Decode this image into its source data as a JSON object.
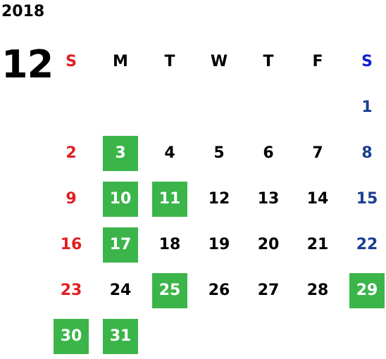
{
  "calendar": {
    "year": "2018",
    "month": "12",
    "weekdays": [
      "S",
      "M",
      "T",
      "W",
      "T",
      "F",
      "S"
    ],
    "highlight_color": "#3bb54a",
    "sunday_color": "#e02020",
    "saturday_color": "#1a3f8f",
    "weeks": [
      [
        {
          "day": ""
        },
        {
          "day": ""
        },
        {
          "day": ""
        },
        {
          "day": ""
        },
        {
          "day": ""
        },
        {
          "day": ""
        },
        {
          "day": "1"
        }
      ],
      [
        {
          "day": "2"
        },
        {
          "day": "3",
          "highlighted": true
        },
        {
          "day": "4"
        },
        {
          "day": "5"
        },
        {
          "day": "6"
        },
        {
          "day": "7"
        },
        {
          "day": "8"
        }
      ],
      [
        {
          "day": "9"
        },
        {
          "day": "10",
          "highlighted": true
        },
        {
          "day": "11",
          "highlighted": true
        },
        {
          "day": "12"
        },
        {
          "day": "13"
        },
        {
          "day": "14"
        },
        {
          "day": "15"
        }
      ],
      [
        {
          "day": "16"
        },
        {
          "day": "17",
          "highlighted": true
        },
        {
          "day": "18"
        },
        {
          "day": "19"
        },
        {
          "day": "20"
        },
        {
          "day": "21"
        },
        {
          "day": "22"
        }
      ],
      [
        {
          "day": "23"
        },
        {
          "day": "24"
        },
        {
          "day": "25",
          "highlighted": true
        },
        {
          "day": "26"
        },
        {
          "day": "27"
        },
        {
          "day": "28"
        },
        {
          "day": "29",
          "highlighted": true
        }
      ],
      [
        {
          "day": "30",
          "highlighted": true
        },
        {
          "day": "31",
          "highlighted": true
        },
        {
          "day": ""
        },
        {
          "day": ""
        },
        {
          "day": ""
        },
        {
          "day": ""
        },
        {
          "day": ""
        }
      ]
    ]
  }
}
